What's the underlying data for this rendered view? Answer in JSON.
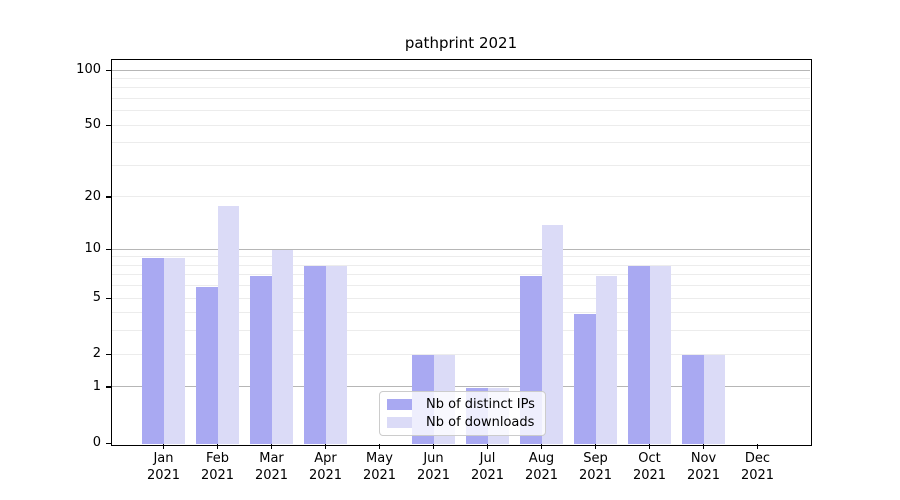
{
  "chart_data": {
    "type": "bar",
    "title": "pathprint 2021",
    "categories": [
      "Jan 2021",
      "Feb 2021",
      "Mar 2021",
      "Apr 2021",
      "May 2021",
      "Jun 2021",
      "Jul 2021",
      "Aug 2021",
      "Sep 2021",
      "Oct 2021",
      "Nov 2021",
      "Dec 2021"
    ],
    "x_tick_months": [
      "Jan",
      "Feb",
      "Mar",
      "Apr",
      "May",
      "Jun",
      "Jul",
      "Aug",
      "Sep",
      "Oct",
      "Nov",
      "Dec"
    ],
    "x_tick_year": "2021",
    "series": [
      {
        "name": "Nb of distinct IPs",
        "color": "#a9a9f2",
        "values": [
          9,
          6,
          7,
          8,
          0,
          2,
          1,
          7,
          4,
          8,
          2,
          0
        ]
      },
      {
        "name": "Nb of downloads",
        "color": "#dbdbf7",
        "values": [
          9,
          18,
          10,
          8,
          0,
          2,
          1,
          14,
          7,
          8,
          2,
          0
        ]
      }
    ],
    "y_scale": "log1p",
    "ylim": [
      0,
      110
    ],
    "y_tick_values": [
      0,
      1,
      2,
      5,
      10,
      20,
      50,
      100
    ],
    "y_tick_labels": [
      "0",
      "1",
      "2",
      "5",
      "10",
      "20",
      "50",
      "100"
    ],
    "grid": true,
    "gridlines_major": [
      1,
      10,
      100
    ],
    "gridlines_minor": [
      2,
      3,
      4,
      5,
      6,
      7,
      8,
      9,
      20,
      30,
      40,
      50,
      60,
      70,
      80,
      90
    ],
    "legend_position": "inside-bottom-center",
    "xlabel": "",
    "ylabel": ""
  },
  "legend": {
    "items": [
      {
        "label": "Nb of distinct IPs",
        "color": "#a9a9f2"
      },
      {
        "label": "Nb of downloads",
        "color": "#dbdbf7"
      }
    ]
  },
  "colors": {
    "bar_distinct_ips": "#a9a9f2",
    "bar_downloads": "#dbdbf7",
    "grid_major": "#b6b6b6",
    "grid_minor": "#ececec",
    "spine": "#000000",
    "background": "#ffffff"
  }
}
